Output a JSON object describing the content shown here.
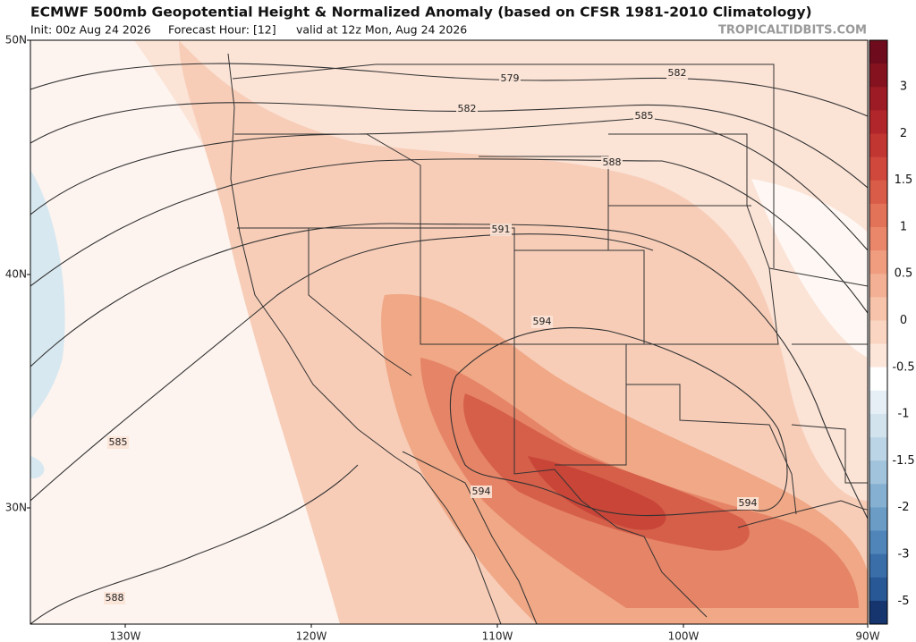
{
  "header": {
    "title": "ECMWF 500mb Geopotential Height & Normalized Anomaly (based on CFSR 1981-2010 Climatology)",
    "subtitle": [
      "Init: 00z Aug 24 2026",
      "Forecast Hour: [12]",
      "valid at 12z Mon, Aug 24 2026"
    ],
    "source": "TROPICALTIDBITS.COM"
  },
  "map": {
    "lat_labels": [
      "50N",
      "40N",
      "30N"
    ],
    "lon_labels": [
      "130W",
      "120W",
      "110W",
      "100W",
      "90W"
    ],
    "contour_labels": [
      "579",
      "582",
      "582",
      "585",
      "588",
      "591",
      "594",
      "594",
      "594",
      "585",
      "588"
    ]
  },
  "colorbar": {
    "ticks": [
      3,
      2,
      1.5,
      1,
      0.5,
      0,
      -0.5,
      -1,
      -1.5,
      -2,
      -3,
      -5
    ]
  }
}
